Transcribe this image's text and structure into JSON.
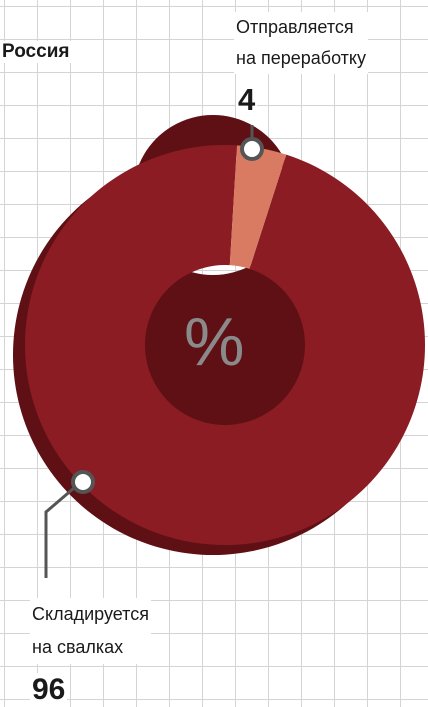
{
  "chart_data": {
    "type": "pie",
    "title": "Россия",
    "center_label": "%",
    "slices": [
      {
        "label_line1": "Отправляется",
        "label_line2": "на переработку",
        "value": 4,
        "display_value": "4",
        "color": "#d97b63"
      },
      {
        "label_line1": "Складируется",
        "label_line2": "на свалках",
        "value": 96,
        "display_value": "96",
        "color": "#8b1c24"
      }
    ],
    "colors": {
      "side": "#5f1015",
      "connector": "#555555"
    }
  }
}
